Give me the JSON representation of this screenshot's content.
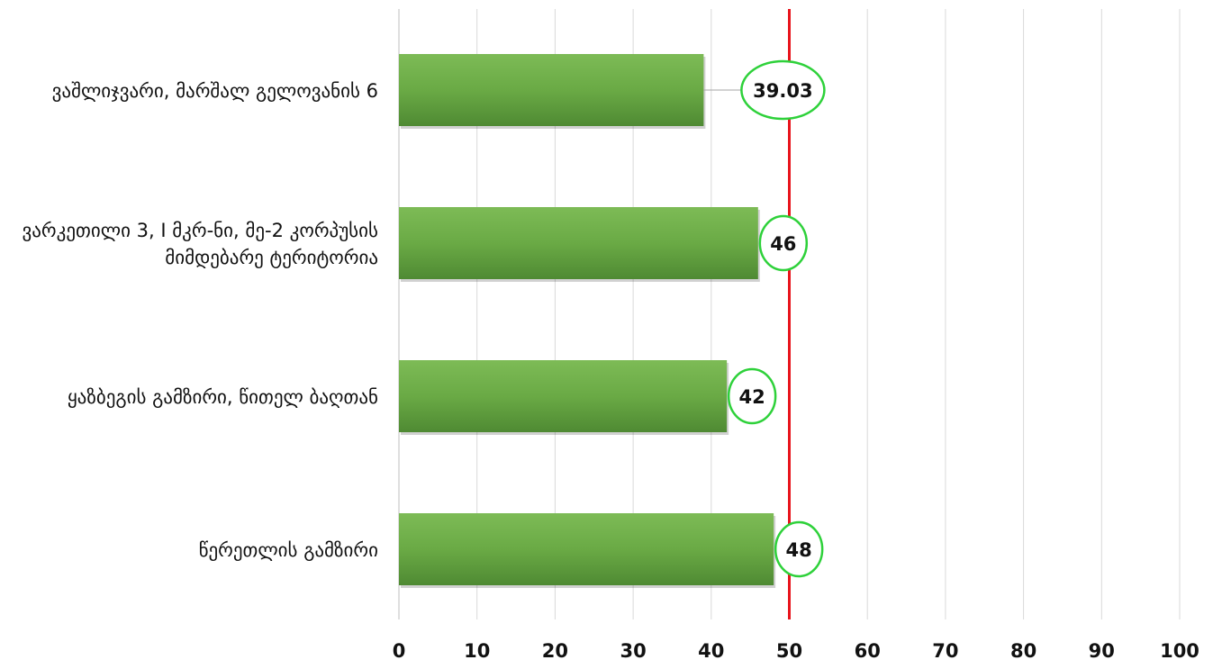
{
  "chart_data": {
    "type": "bar",
    "orientation": "horizontal",
    "categories": [
      "ვაშლიჯვარი, მარშალ გელოვანის 6",
      "ვარკეთილი 3, I მკრ-ნი, მე-2 კორპუსის მიმდებარე ტერიტორია",
      "ყაზბეგის გამზირი, წითელ ბაღთან",
      "წერეთლის გამზირი"
    ],
    "category_lines": [
      [
        "ვაშლიჯვარი, მარშალ გელოვანის 6"
      ],
      [
        "ვარკეთილი 3, I მკრ-ნი, მე-2 კორპუსის",
        "მიმდებარე ტერიტორია"
      ],
      [
        "ყაზბეგის გამზირი, წითელ ბაღთან"
      ],
      [
        "წერეთლის გამზირი"
      ]
    ],
    "values": [
      39.03,
      46,
      42,
      48
    ],
    "data_labels": [
      "39.03",
      "46",
      "42",
      "48"
    ],
    "xlim": [
      0,
      100
    ],
    "x_ticks": [
      0,
      10,
      20,
      30,
      40,
      50,
      60,
      70,
      80,
      90,
      100
    ],
    "reference_line": 50,
    "grid": "vertical",
    "legend": "none",
    "title": "",
    "xlabel": "",
    "ylabel": ""
  },
  "colors": {
    "bar": "#6aaa45",
    "bar_light": "#7dbb56",
    "bar_dark": "#4f8a33",
    "gridline": "#d9d9d9",
    "axis": "#bfbfbf",
    "reference_line": "#e8141c",
    "label_ellipse": "#2ed13a"
  }
}
